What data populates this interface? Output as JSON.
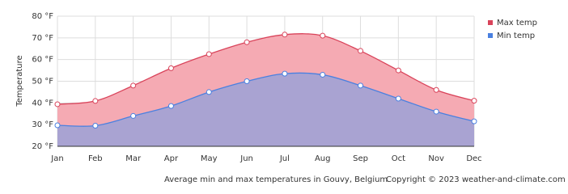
{
  "chart_data": {
    "type": "area",
    "y_label": "Temperature",
    "caption": "Average min and max temperatures in Gouvy, Belgium",
    "copyright": "Copyright © 2023  weather-and-climate.com",
    "categories": [
      "Jan",
      "Feb",
      "Mar",
      "Apr",
      "May",
      "Jun",
      "Jul",
      "Aug",
      "Sep",
      "Oct",
      "Nov",
      "Dec"
    ],
    "series": [
      {
        "name": "Max temp",
        "color": "#d9435a",
        "fill": "#f5aab3",
        "values": [
          39.4,
          40.9,
          48,
          56,
          62.5,
          68,
          71.5,
          71,
          64,
          55,
          46,
          41
        ]
      },
      {
        "name": "Min temp",
        "color": "#4a80e0",
        "fill": "#a9a3d2",
        "values": [
          29.7,
          29.5,
          34,
          38.6,
          45,
          50,
          53.5,
          53,
          48,
          42,
          36,
          31.5
        ]
      }
    ],
    "ylim": [
      20,
      80
    ],
    "yticks": [
      {
        "value": 20,
        "label": "20 °F"
      },
      {
        "value": 30,
        "label": "30 °F"
      },
      {
        "value": 40,
        "label": "40 °F"
      },
      {
        "value": 50,
        "label": "50 °F"
      },
      {
        "value": 60,
        "label": "60 °F"
      },
      {
        "value": 70,
        "label": "70 °F"
      },
      {
        "value": 80,
        "label": "80 °F"
      }
    ],
    "grid": true,
    "legend": "right"
  }
}
